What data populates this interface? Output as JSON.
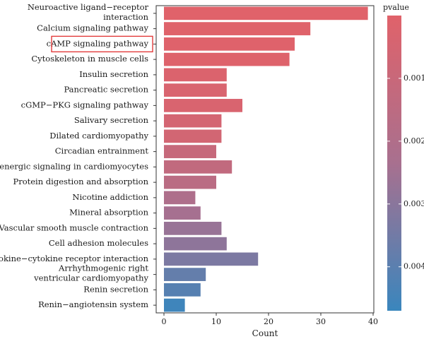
{
  "chart_data": {
    "type": "bar",
    "orientation": "horizontal",
    "xlabel": "Count",
    "ylabel": "",
    "xlim": [
      0,
      40
    ],
    "x_ticks": [
      0,
      10,
      20,
      30,
      40
    ],
    "grid": false,
    "highlighted_category": "cAMP signaling pathway",
    "categories": [
      [
        "Neuroactive ligand−receptor",
        "interaction"
      ],
      [
        "Calcium signaling pathway"
      ],
      [
        "cAMP signaling pathway"
      ],
      [
        "Cytoskeleton in muscle cells"
      ],
      [
        "Insulin secretion"
      ],
      [
        "Pancreatic secretion"
      ],
      [
        "cGMP−PKG signaling pathway"
      ],
      [
        "Salivary secretion"
      ],
      [
        "Dilated cardiomyopathy"
      ],
      [
        "Circadian entrainment"
      ],
      [
        "Adrenergic signaling in cardiomyocytes"
      ],
      [
        "Protein digestion and absorption"
      ],
      [
        "Nicotine addiction"
      ],
      [
        "Mineral absorption"
      ],
      [
        "Vascular smooth muscle contraction"
      ],
      [
        "Cell adhesion molecules"
      ],
      [
        "Cytokine−cytokine receptor interaction"
      ],
      [
        "Arrhythmogenic right",
        "ventricular cardiomyopathy"
      ],
      [
        "Renin secretion"
      ],
      [
        "Renin−angiotensin system"
      ]
    ],
    "values": [
      39,
      28,
      25,
      24,
      12,
      12,
      15,
      11,
      11,
      10,
      13,
      10,
      6,
      7,
      11,
      12,
      18,
      8,
      7,
      4
    ],
    "pvalues": [
      1e-05,
      3e-05,
      5e-05,
      7e-05,
      0.0002,
      0.0003,
      0.0003,
      0.0005,
      0.0006,
      0.0011,
      0.0013,
      0.0016,
      0.0021,
      0.0024,
      0.0027,
      0.0029,
      0.0033,
      0.0038,
      0.0041,
      0.0046
    ],
    "legend": {
      "title": "pvalue",
      "placement": "right",
      "range": [
        0.0,
        0.0047
      ],
      "ticks": [
        0.001,
        0.002,
        0.003,
        0.004
      ],
      "tick_labels": [
        "0.001",
        "0.002",
        "0.003",
        "0.004"
      ],
      "color_low": "#e0626a",
      "color_mid": "#a8708f",
      "color_high": "#3a86bd"
    }
  }
}
